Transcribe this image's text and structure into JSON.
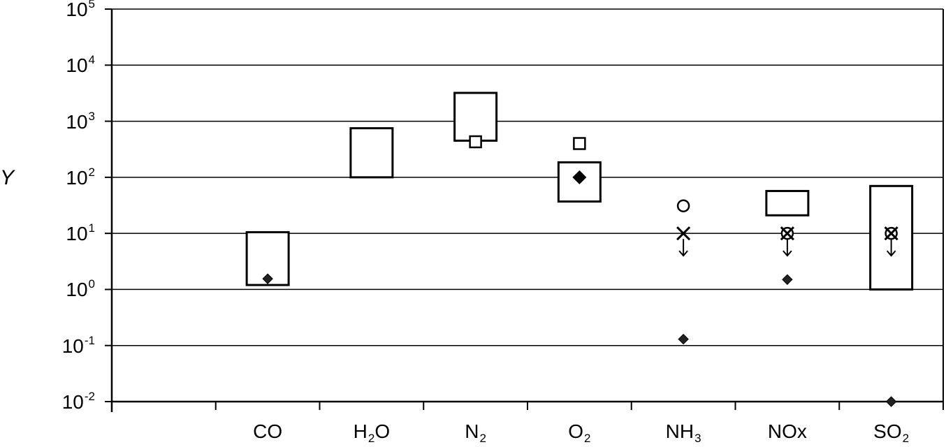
{
  "chart_data": {
    "type": "scatter",
    "ylabel": "Y",
    "xlabel": "",
    "title": "",
    "yscale": "log",
    "ylim": [
      0.01,
      100000
    ],
    "grid": true,
    "yticks": [
      {
        "base": "10",
        "exp": "-2"
      },
      {
        "base": "10",
        "exp": "-1"
      },
      {
        "base": "10",
        "exp": "0"
      },
      {
        "base": "10",
        "exp": "1"
      },
      {
        "base": "10",
        "exp": "2"
      },
      {
        "base": "10",
        "exp": "3"
      },
      {
        "base": "10",
        "exp": "4"
      },
      {
        "base": "10",
        "exp": "5"
      }
    ],
    "categories": [
      {
        "base": "",
        "sub": ""
      },
      {
        "base": "CO",
        "sub": ""
      },
      {
        "base": "H",
        "sub": "2",
        "tail": "O"
      },
      {
        "base": "N",
        "sub": "2"
      },
      {
        "base": "O",
        "sub": "2"
      },
      {
        "base": "NH",
        "sub": "3"
      },
      {
        "base": "NOx",
        "sub": ""
      },
      {
        "base": "SO",
        "sub": "2"
      }
    ],
    "ranges": [
      {
        "category": 1,
        "low": 1.2,
        "high": 10.5
      },
      {
        "category": 2,
        "low": 100,
        "high": 750
      },
      {
        "category": 3,
        "low": 450,
        "high": 3200
      },
      {
        "category": 4,
        "low": 37,
        "high": 185
      },
      {
        "category": 6,
        "low": 21,
        "high": 57
      },
      {
        "category": 7,
        "low": 1.0,
        "high": 70
      }
    ],
    "points": [
      {
        "category": 1,
        "value": 1.55,
        "marker": "diamond-small"
      },
      {
        "category": 3,
        "value": 430,
        "marker": "square-open"
      },
      {
        "category": 4,
        "value": 400,
        "marker": "square-open"
      },
      {
        "category": 4,
        "value": 100,
        "marker": "diamond-filled"
      },
      {
        "category": 5,
        "value": 31,
        "marker": "circle-open"
      },
      {
        "category": 5,
        "value": 10,
        "marker": "x-upper-limit"
      },
      {
        "category": 5,
        "value": 0.13,
        "marker": "diamond-small"
      },
      {
        "category": 6,
        "value": 10,
        "marker": "circle-open"
      },
      {
        "category": 6,
        "value": 10,
        "marker": "x-upper-limit"
      },
      {
        "category": 6,
        "value": 1.5,
        "marker": "diamond-small"
      },
      {
        "category": 7,
        "value": 10,
        "marker": "circle-open"
      },
      {
        "category": 7,
        "value": 10,
        "marker": "x-upper-limit"
      },
      {
        "category": 7,
        "value": 0.01,
        "marker": "diamond-small"
      }
    ]
  }
}
